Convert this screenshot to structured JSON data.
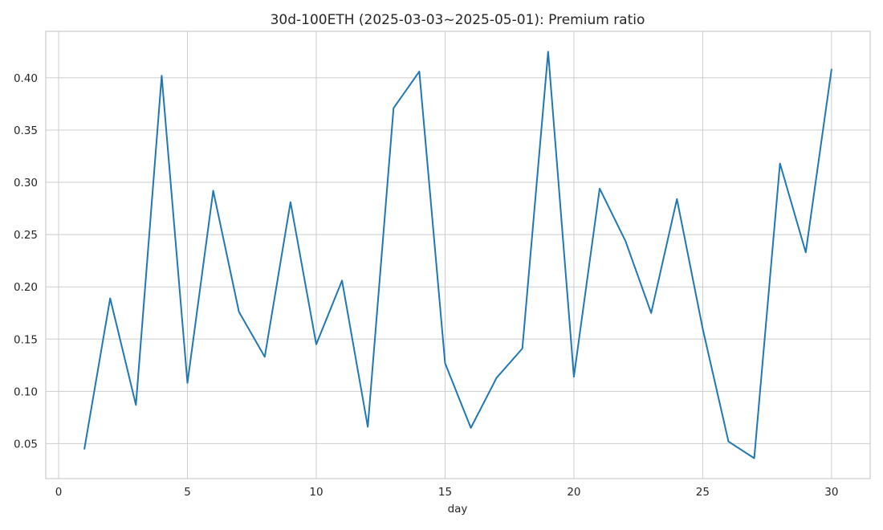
{
  "chart_data": {
    "type": "line",
    "title": "30d-100ETH (2025-03-03~2025-05-01): Premium ratio",
    "xlabel": "day",
    "ylabel": "",
    "xlim": [
      -0.5,
      31.5
    ],
    "ylim": [
      0.0165,
      0.4445
    ],
    "xticks": [
      0,
      5,
      10,
      15,
      20,
      25,
      30
    ],
    "xtick_labels": [
      "0",
      "5",
      "10",
      "15",
      "20",
      "25",
      "30"
    ],
    "yticks": [
      0.05,
      0.1,
      0.15,
      0.2,
      0.25,
      0.3,
      0.35,
      0.4
    ],
    "ytick_labels": [
      "0.05",
      "0.10",
      "0.15",
      "0.20",
      "0.25",
      "0.30",
      "0.35",
      "0.40"
    ],
    "grid": true,
    "legend": "none",
    "series": [
      {
        "name": "Premium ratio",
        "color": "#1f77b4",
        "x": [
          1,
          2,
          3,
          4,
          5,
          6,
          7,
          8,
          9,
          10,
          11,
          12,
          13,
          14,
          15,
          16,
          17,
          18,
          19,
          20,
          21,
          22,
          23,
          24,
          25,
          26,
          27,
          28,
          29,
          30
        ],
        "values": [
          0.045,
          0.189,
          0.087,
          0.402,
          0.108,
          0.292,
          0.176,
          0.133,
          0.281,
          0.145,
          0.206,
          0.066,
          0.371,
          0.406,
          0.127,
          0.065,
          0.113,
          0.141,
          0.425,
          0.114,
          0.294,
          0.244,
          0.175,
          0.284,
          0.16,
          0.052,
          0.036,
          0.318,
          0.233,
          0.408
        ]
      }
    ]
  }
}
